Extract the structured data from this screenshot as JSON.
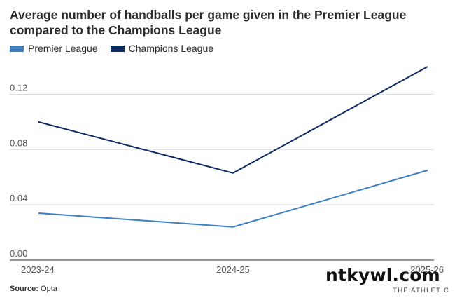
{
  "chart_data": {
    "type": "line",
    "title": "Average number of handballs per game given in the Premier League compared to the Champions League",
    "categories": [
      "2023-24",
      "2024-25",
      "2025-26"
    ],
    "series": [
      {
        "name": "Premier League",
        "color": "#3d7fc4",
        "values": [
          0.034,
          0.024,
          0.065
        ]
      },
      {
        "name": "Champions League",
        "color": "#0d2b63",
        "values": [
          0.1,
          0.063,
          0.14
        ]
      }
    ],
    "yticks": [
      "0.00",
      "0.04",
      "0.08",
      "0.12"
    ],
    "ylim": [
      0,
      0.14
    ],
    "grid": true,
    "legend": "top-left"
  },
  "footer": {
    "source_label": "Source:",
    "source_value": "Opta",
    "watermark": "ntkywl.com",
    "brand": "THE ATHLETIC"
  }
}
